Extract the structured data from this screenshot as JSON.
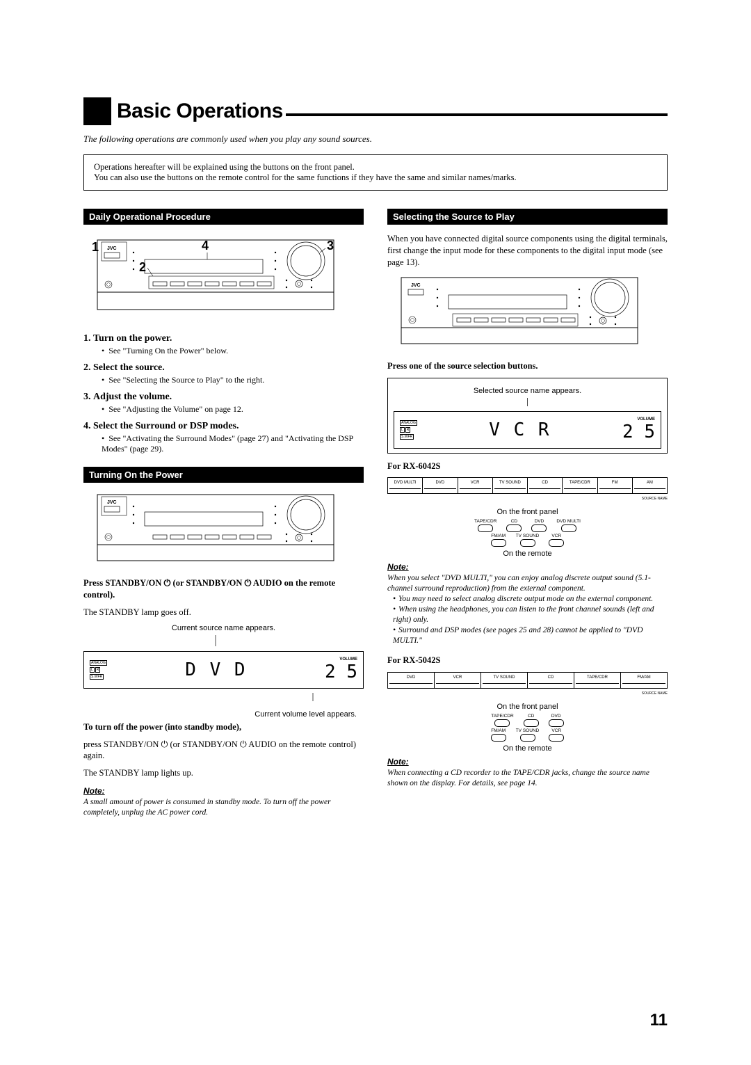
{
  "title": "Basic Operations",
  "intro": "The following operations are commonly used when you play any sound sources.",
  "box_note_l1": "Operations hereafter will be explained using the buttons on the front panel.",
  "box_note_l2": "You can also use the buttons on the remote control for the same functions if they have the same and similar names/marks.",
  "left": {
    "sec1": "Daily Operational Procedure",
    "step1": "Turn on the power.",
    "step1s": "See \"Turning On the Power\" below.",
    "step2": "Select the source.",
    "step2s": "See \"Selecting the Source to Play\" to the right.",
    "step3": "Adjust the volume.",
    "step3s": "See \"Adjusting the Volume\" on page 12.",
    "step4": "Select the Surround or DSP modes.",
    "step4s": "See \"Activating the Surround Modes\" (page 27) and \"Activating the DSP Modes\" (page 29).",
    "sec2": "Turning On the Power",
    "press1a": "Press STANDBY/ON ",
    "press1b": " (or STANDBY/ON ",
    "press1c": " AUDIO on the remote control).",
    "standby_off": "The STANDBY lamp goes off.",
    "cap_source": "Current source name appears.",
    "cap_volume": "Current volume level appears.",
    "display_main": "D V D",
    "display_vol": "2 5",
    "turnoff_h": "To turn off the power (into standby mode),",
    "turnoff_a": "press STANDBY/ON ",
    "turnoff_b": " (or STANDBY/ON ",
    "turnoff_c": " AUDIO on the remote control) again.",
    "standby_on": "The STANDBY lamp lights up.",
    "note_h": "Note:",
    "note_body": "A small amount of power is consumed in standby mode. To turn off the power completely, unplug the AC power cord."
  },
  "right": {
    "sec1": "Selecting the Source to Play",
    "intro": "When you have connected digital source components using the digital terminals, first change the input mode for these components to the digital input mode (see page 13).",
    "press_h": "Press one of the source selection buttons.",
    "cap_sel": "Selected source name appears.",
    "display_main": "V C R",
    "display_vol": "2 5",
    "for6042": "For RX-6042S",
    "strip6042": [
      "DVD MULTI",
      "DVD",
      "VCR",
      "TV SOUND",
      "CD",
      "TAPE/CDR",
      "FM",
      "AM"
    ],
    "for5042": "For RX-5042S",
    "strip5042": [
      "DVD",
      "VCR",
      "TV SOUND",
      "CD",
      "TAPE/CDR",
      "FM/AM"
    ],
    "source_name": "SOURCE NAME",
    "front_panel": "On the front panel",
    "on_remote": "On the remote",
    "remote6042_r1": [
      "TAPE/CDR",
      "CD",
      "DVD",
      "DVD MULTI"
    ],
    "remote6042_r2": [
      "FM/AM",
      "TV SOUND",
      "VCR"
    ],
    "remote5042_r1": [
      "TAPE/CDR",
      "CD",
      "DVD"
    ],
    "remote5042_r2": [
      "FM/AM",
      "TV SOUND",
      "VCR"
    ],
    "note_h": "Note:",
    "note1_l1": "When you select \"DVD MULTI,\" you can enjoy analog discrete output sound (5.1-channel surround reproduction) from the external component.",
    "note1_b1": "You may need to select analog discrete output mode on the external component.",
    "note1_b2": "When using the headphones, you can listen to the front channel sounds (left and right) only.",
    "note1_b3": "Surround and DSP modes (see pages 25 and 28) cannot be applied to \"DVD MULTI.\"",
    "note2": "When connecting a CD recorder to the TAPE/CDR jacks, change the source name shown on the display. For details, see page 14."
  },
  "analog": "ANALOG",
  "lr_l": "L",
  "lr_r": "R",
  "swfr": "S.WFR",
  "volume": "VOLUME",
  "jvc": "JVC",
  "page": "11"
}
